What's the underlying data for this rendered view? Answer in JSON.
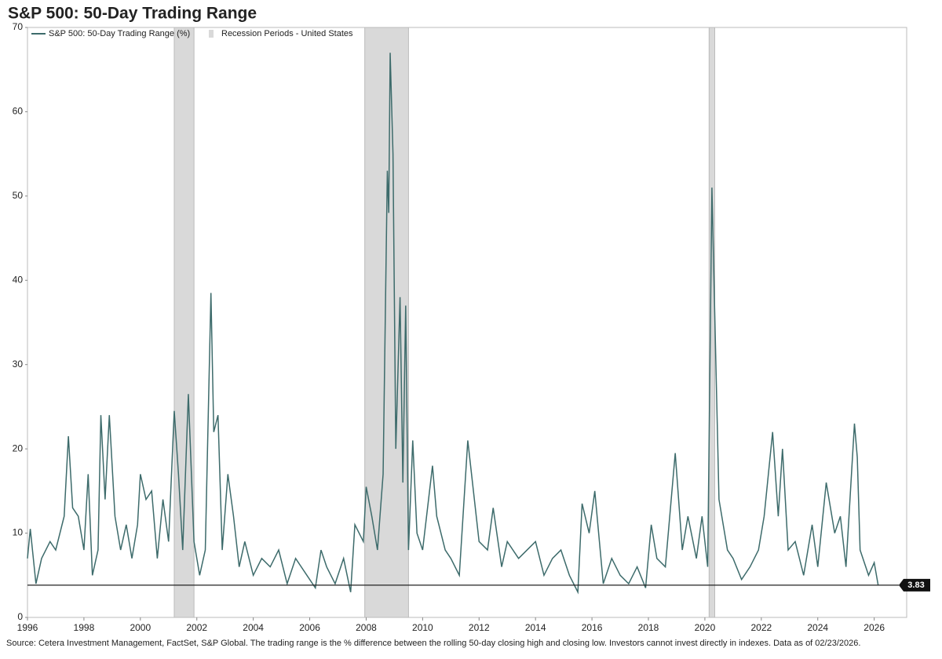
{
  "chart_data": {
    "type": "line",
    "title": "S&P 500: 50-Day Trading Range",
    "source": "Source: Cetera Investment Management, FactSet, S&P Global. The trading range is the % difference between the rolling 50-day closing high and closing low. Investors cannot invest directly in indexes. Data as of 02/23/2026.",
    "x": [
      1996.0,
      1996.1,
      1996.3,
      1996.5,
      1996.8,
      1997.0,
      1997.3,
      1997.45,
      1997.6,
      1997.8,
      1998.0,
      1998.15,
      1998.3,
      1998.5,
      1998.6,
      1998.75,
      1998.9,
      1999.1,
      1999.3,
      1999.5,
      1999.7,
      1999.9,
      2000.0,
      2000.2,
      2000.4,
      2000.6,
      2000.8,
      2001.0,
      2001.2,
      2001.35,
      2001.5,
      2001.7,
      2001.9,
      2002.1,
      2002.3,
      2002.5,
      2002.6,
      2002.75,
      2002.9,
      2003.1,
      2003.3,
      2003.5,
      2003.7,
      2004.0,
      2004.3,
      2004.6,
      2004.9,
      2005.2,
      2005.5,
      2005.9,
      2006.2,
      2006.4,
      2006.6,
      2006.9,
      2007.2,
      2007.45,
      2007.6,
      2007.9,
      2008.0,
      2008.2,
      2008.4,
      2008.6,
      2008.75,
      2008.8,
      2008.85,
      2008.95,
      2009.05,
      2009.2,
      2009.3,
      2009.4,
      2009.5,
      2009.65,
      2009.8,
      2010.0,
      2010.35,
      2010.5,
      2010.8,
      2011.0,
      2011.3,
      2011.6,
      2011.8,
      2012.0,
      2012.3,
      2012.5,
      2012.8,
      2013.0,
      2013.4,
      2013.7,
      2014.0,
      2014.3,
      2014.6,
      2014.9,
      2015.2,
      2015.5,
      2015.65,
      2015.9,
      2016.1,
      2016.4,
      2016.7,
      2017.0,
      2017.3,
      2017.6,
      2017.9,
      2018.1,
      2018.3,
      2018.6,
      2018.95,
      2019.2,
      2019.4,
      2019.7,
      2019.9,
      2020.1,
      2020.25,
      2020.35,
      2020.5,
      2020.8,
      2021.0,
      2021.3,
      2021.6,
      2021.9,
      2022.1,
      2022.4,
      2022.6,
      2022.75,
      2022.95,
      2023.2,
      2023.5,
      2023.8,
      2024.0,
      2024.3,
      2024.6,
      2024.8,
      2025.0,
      2025.3,
      2025.4,
      2025.5,
      2025.8,
      2026.0,
      2026.14
    ],
    "series": [
      {
        "name": "S&P 500: 50-Day Trading Range (%)",
        "color": "#3d6b6b",
        "values": [
          7,
          10.5,
          4,
          7,
          9,
          8,
          12,
          21.5,
          13,
          12,
          8,
          17,
          5,
          8,
          24,
          14,
          24,
          12,
          8,
          11,
          7,
          11,
          17,
          14,
          15,
          7,
          14,
          9,
          24.5,
          17,
          8,
          26.5,
          9,
          5,
          8,
          38.5,
          22,
          24,
          8,
          17,
          12,
          6,
          9,
          5,
          7,
          6,
          8,
          4,
          7,
          5,
          3.5,
          8,
          6,
          4,
          7,
          3,
          11,
          9,
          15.5,
          12,
          8,
          17,
          53,
          48,
          67,
          55,
          20,
          38,
          16,
          37,
          8,
          21,
          10,
          8,
          18,
          12,
          8,
          7,
          5,
          21,
          15,
          9,
          8,
          13,
          6,
          9,
          7,
          8,
          9,
          5,
          7,
          8,
          5,
          3,
          13.5,
          10,
          15,
          4,
          7,
          5,
          4,
          6,
          3.5,
          11,
          7,
          6,
          19.5,
          8,
          12,
          7,
          12,
          6,
          51,
          36,
          14,
          8,
          7,
          4.5,
          6,
          8,
          12,
          22,
          12,
          20,
          8,
          9,
          5,
          11,
          6,
          16,
          10,
          12,
          6,
          23,
          19,
          8,
          5,
          6.5,
          3.83
        ]
      }
    ],
    "recession_name": "Recession Periods - United States",
    "recession_color": "#d9d9d9",
    "recessions": [
      [
        2001.2,
        2001.9
      ],
      [
        2007.95,
        2009.5
      ],
      [
        2020.15,
        2020.35
      ]
    ],
    "last_value": 3.83,
    "xlim": [
      1996,
      2027.15
    ],
    "ylim": [
      0,
      70
    ],
    "xticks": [
      1996,
      1998,
      2000,
      2002,
      2004,
      2006,
      2008,
      2010,
      2012,
      2014,
      2016,
      2018,
      2020,
      2022,
      2024,
      2026
    ],
    "yticks": [
      0,
      10,
      20,
      30,
      40,
      50,
      60,
      70
    ]
  }
}
